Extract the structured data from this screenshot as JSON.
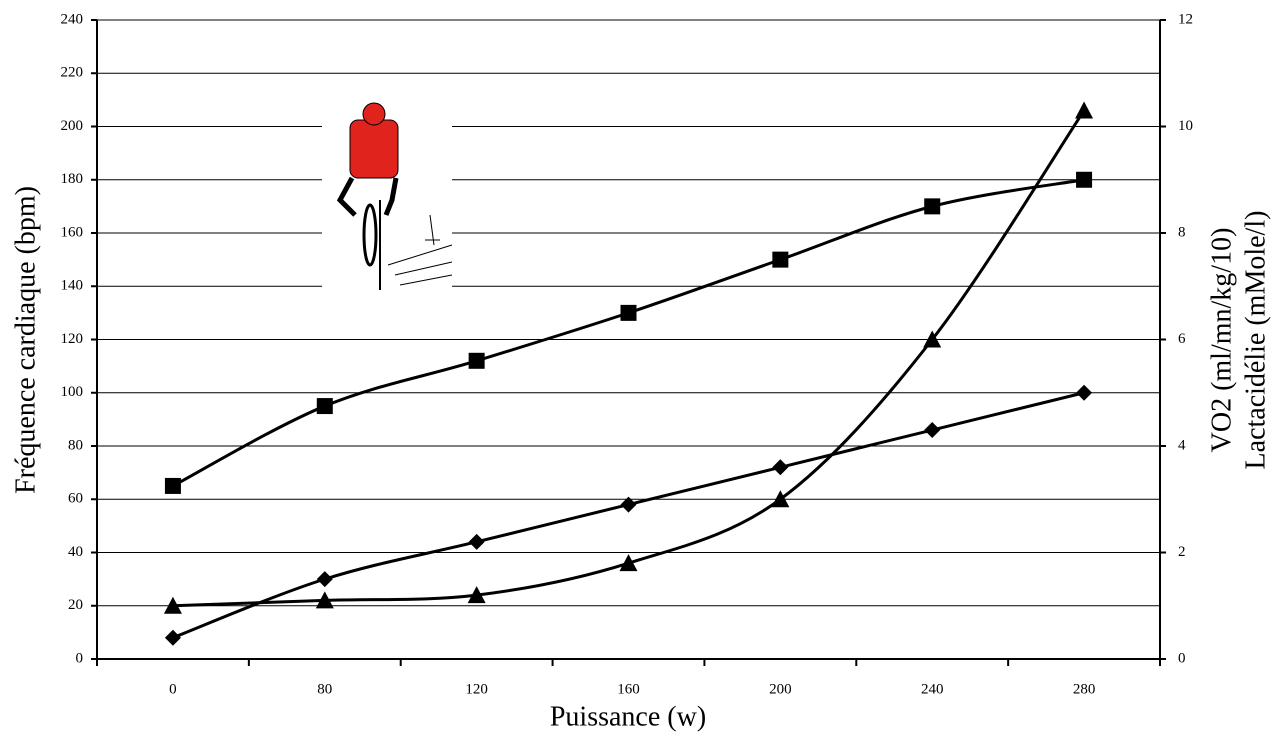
{
  "chart_data": {
    "type": "line",
    "x_label": "Puissance (w)",
    "y_label": "Fréquence cardiaque (bpm)",
    "y2_labels": [
      "VO2 (ml/mn/kg/10)",
      "Lactacidélie (mMole/l)"
    ],
    "categories": [
      "0",
      "80",
      "120",
      "160",
      "200",
      "240",
      "280"
    ],
    "ylim": [
      0,
      240
    ],
    "yticks": [
      0,
      20,
      40,
      60,
      80,
      100,
      120,
      140,
      160,
      180,
      200,
      220,
      240
    ],
    "y2lim": [
      0,
      12
    ],
    "y2ticks": [
      0,
      2,
      4,
      6,
      8,
      10,
      12
    ],
    "grid": true,
    "smooth": true,
    "series": [
      {
        "color": "#000000",
        "marker": "square",
        "values": [
          65,
          95,
          112,
          130,
          150,
          170,
          180
        ]
      },
      {
        "color": "#000000",
        "marker": "diamond",
        "axis": "y2",
        "values": [
          0.4,
          1.5,
          2.2,
          2.9,
          3.6,
          4.3,
          5.0
        ]
      },
      {
        "color": "#000000",
        "marker": "triangle",
        "axis": "y2",
        "values": [
          1.0,
          1.1,
          1.2,
          1.8,
          3.0,
          6.0,
          10.3
        ]
      }
    ]
  }
}
